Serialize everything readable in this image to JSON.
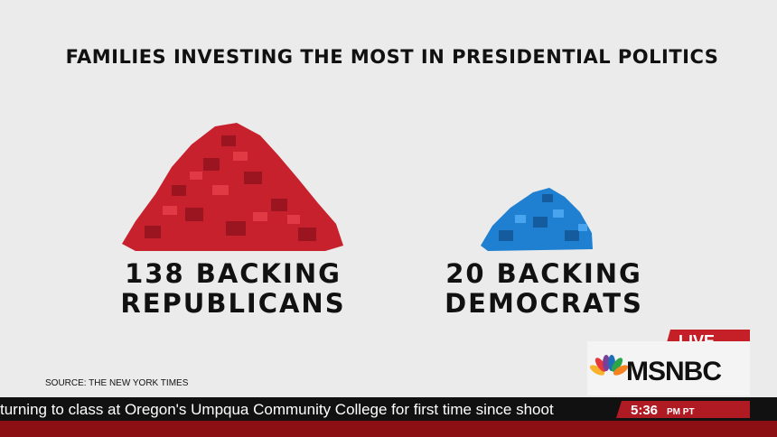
{
  "title": "FAMILIES INVESTING THE MOST IN PRESIDENTIAL POLITICS",
  "groups": [
    {
      "lines": [
        "138 BACKING",
        "REPUBLICANS"
      ]
    },
    {
      "lines": [
        "20 BACKING",
        "DEMOCRATS"
      ]
    }
  ],
  "source": "SOURCE: THE NEW YORK TIMES",
  "bug": {
    "live": "LIVE",
    "network": "MSNBC"
  },
  "ticker": {
    "text": "turning to class at Oregon's Umpqua Community College for first time since shoot",
    "time": "5:36",
    "period": "PM PT"
  }
}
